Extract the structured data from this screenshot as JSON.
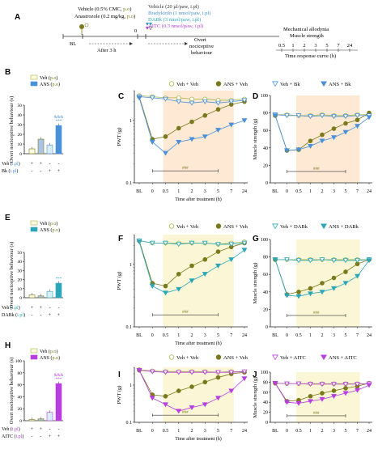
{
  "panel_letters": [
    "A",
    "B",
    "C",
    "D",
    "E",
    "F",
    "G",
    "H",
    "I",
    "J"
  ],
  "timeline": {
    "pretreat_line1": "Vehicle (0.5% CMC, ",
    "pretreat_line1_route": "p.o",
    "pretreat_line2": "Anastrozole (0.2 mg/kg, ",
    "pretreat_line2_route": "p.o",
    "bl": "BL",
    "after": "After 3 h",
    "zero": "0",
    "treat_lines": [
      {
        "text": "Vehicle (20 μl/paw, i.pl)",
        "color": "#333333"
      },
      {
        "text": "Bradykinin (1 nmol/paw, i.pl)",
        "color": "#4a90d9"
      },
      {
        "text": "DABk (3 nmol/paw, i.pl)",
        "color": "#2aa6b8"
      },
      {
        "text": "AITC (0.3 nmol/paw, i.pl)",
        "color": "#b83ee0"
      }
    ],
    "overt_line1": "Overt",
    "overt_line2": "nociceptive",
    "overt_line3": "behaviour",
    "mech_line1": "Mechanical allodynia",
    "mech_line2": "Muscle strength",
    "time_points": [
      "0.5",
      "1",
      "2",
      "3",
      "5",
      "7",
      "24"
    ],
    "time_caption": "Time response curve (h)"
  },
  "legends": [
    {
      "items": [
        "Veh + Veh",
        "ANS + Veh",
        "Veh + Bk",
        "ANS + Bk"
      ]
    },
    {
      "items": [
        "Veh + Veh",
        "ANS + Veh",
        "Veh + DABk",
        "ANS + DABk"
      ]
    },
    {
      "items": [
        "Veh + Veh",
        "ANS + Veh",
        "Veh + AITC",
        "ANS + AITC"
      ]
    }
  ],
  "colors": {
    "veh": "#a8b84a",
    "ans": "#7a7a1c",
    "bk": "#4a90d9",
    "dabk": "#2aa6b8",
    "aitc": "#b83ee0",
    "shade_orange": "#fde9d4",
    "shade_yellow": "#fbf6d6"
  },
  "chart_data": [
    {
      "panel": "B",
      "type": "bar",
      "ylabel": "Overt nociceptive behaviour (s)",
      "ylim": [
        0,
        50
      ],
      "yticks": [
        "0",
        "10",
        "20",
        "30",
        "40",
        "50"
      ],
      "legend": [
        "Veh",
        "ANS"
      ],
      "legend_routes": [
        "p.o",
        "p.o"
      ],
      "row_labels": [
        "Veh",
        "Bk"
      ],
      "row_routes": [
        "i.pl",
        "i.pl"
      ],
      "signs": [
        [
          "+",
          "+",
          "-",
          "-"
        ],
        [
          "-",
          "-",
          "+",
          "+"
        ]
      ],
      "values": [
        5,
        15,
        9,
        29
      ],
      "annotations": [
        "",
        "",
        "",
        "&&&\n***"
      ]
    },
    {
      "panel": "C",
      "type": "line",
      "ylabel": "PWT (g)",
      "xlabel": "Time after treatment (h)",
      "scale": "log",
      "ylim": [
        0.1,
        3
      ],
      "yticks": [
        "0.1",
        "1"
      ],
      "categories": [
        "BL",
        "0",
        "0.5",
        "1",
        "2",
        "3",
        "5",
        "7",
        "24"
      ],
      "series": [
        {
          "name": "Veh + Veh",
          "values": [
            2.5,
            2.4,
            2.3,
            2.3,
            2.2,
            2.2,
            2.1,
            2.1,
            2.2
          ]
        },
        {
          "name": "ANS + Veh",
          "values": [
            2.4,
            0.5,
            0.55,
            0.75,
            0.95,
            1.2,
            1.5,
            1.8,
            2.0
          ]
        },
        {
          "name": "Veh + Bk",
          "values": [
            2.4,
            2.3,
            2.2,
            2.0,
            1.9,
            2.0,
            1.9,
            2.0,
            2.1
          ]
        },
        {
          "name": "ANS + Bk",
          "values": [
            2.3,
            0.45,
            0.3,
            0.45,
            0.5,
            0.55,
            0.7,
            0.85,
            1.0
          ]
        }
      ],
      "bracket": "###"
    },
    {
      "panel": "D",
      "type": "line",
      "ylabel": "Muscle strength (g)",
      "ylim": [
        0,
        100
      ],
      "yticks": [
        "0",
        "20",
        "40",
        "60",
        "80",
        "100"
      ],
      "categories": [
        "BL",
        "0",
        "0.5",
        "1",
        "2",
        "3",
        "5",
        "7",
        "24"
      ],
      "series": [
        {
          "name": "Veh + Veh",
          "values": [
            78,
            78,
            77,
            77,
            78,
            77,
            77,
            78,
            78
          ]
        },
        {
          "name": "ANS + Veh",
          "values": [
            77,
            37,
            38,
            48,
            55,
            62,
            68,
            72,
            80
          ]
        },
        {
          "name": "Veh + Bk",
          "values": [
            78,
            77,
            77,
            76,
            77,
            76,
            76,
            77,
            77
          ]
        },
        {
          "name": "ANS + Bk",
          "values": [
            77,
            37,
            38,
            42,
            48,
            52,
            58,
            65,
            75
          ]
        }
      ],
      "bracket": "###"
    },
    {
      "panel": "E",
      "type": "bar",
      "ylabel": "Overt nociceptive behaviour (s)",
      "ylim": [
        0,
        50
      ],
      "yticks": [
        "0",
        "10",
        "20",
        "30",
        "40",
        "50"
      ],
      "legend": [
        "Veh",
        "ANS"
      ],
      "legend_routes": [
        "p.o",
        "p.o"
      ],
      "row_labels": [
        "Veh",
        "DABk"
      ],
      "row_routes": [
        "i.pl",
        "i.pl"
      ],
      "signs": [
        [
          "+",
          "+",
          "-",
          "-"
        ],
        [
          "-",
          "-",
          "+",
          "+"
        ]
      ],
      "values": [
        3,
        2,
        7,
        16
      ],
      "annotations": [
        "",
        "",
        "",
        "***"
      ]
    },
    {
      "panel": "F",
      "type": "line",
      "ylabel": "PWT (g)",
      "xlabel": "Time after treatment (h)",
      "scale": "log",
      "ylim": [
        0.1,
        3
      ],
      "yticks": [
        "0.1",
        "1"
      ],
      "categories": [
        "BL",
        "0",
        "0.5",
        "1",
        "2",
        "3",
        "5",
        "7",
        "24"
      ],
      "series": [
        {
          "name": "Veh + Veh",
          "values": [
            2.4,
            2.2,
            2.2,
            2.2,
            2.2,
            2.2,
            2.1,
            2.2,
            2.3
          ]
        },
        {
          "name": "ANS + Veh",
          "values": [
            2.4,
            0.5,
            0.45,
            0.7,
            0.95,
            1.2,
            1.6,
            1.9,
            2.2
          ]
        },
        {
          "name": "Veh + DABk",
          "values": [
            2.4,
            2.2,
            2.2,
            2.1,
            2.2,
            2.2,
            2.1,
            2.1,
            2.2
          ]
        },
        {
          "name": "ANS + DABk",
          "values": [
            2.3,
            0.45,
            0.35,
            0.4,
            0.55,
            0.7,
            0.95,
            1.2,
            1.7
          ]
        }
      ],
      "bracket": "###"
    },
    {
      "panel": "G",
      "type": "line",
      "ylabel": "Muscle strength (g)",
      "ylim": [
        0,
        100
      ],
      "yticks": [
        "0",
        "20",
        "40",
        "60",
        "80",
        "100"
      ],
      "categories": [
        "BL",
        "0",
        "0.5",
        "1",
        "2",
        "3",
        "5",
        "7",
        "24"
      ],
      "series": [
        {
          "name": "Veh + Veh",
          "values": [
            77,
            77,
            77,
            77,
            77,
            77,
            77,
            77,
            77
          ]
        },
        {
          "name": "ANS + Veh",
          "values": [
            77,
            37,
            40,
            44,
            50,
            56,
            63,
            72,
            77
          ]
        },
        {
          "name": "Veh + DABk",
          "values": [
            77,
            77,
            76,
            76,
            77,
            76,
            76,
            76,
            77
          ]
        },
        {
          "name": "ANS + DABk",
          "values": [
            77,
            36,
            35,
            38,
            40,
            44,
            50,
            58,
            76
          ]
        }
      ],
      "bracket": "###"
    },
    {
      "panel": "H",
      "type": "bar",
      "ylabel": "Overt nociceptive behaviour (s)",
      "ylim": [
        0,
        100
      ],
      "yticks": [
        "0",
        "20",
        "40",
        "60",
        "80",
        "100"
      ],
      "legend": [
        "Veh",
        "ANS"
      ],
      "legend_routes": [
        "p.o",
        "p.o"
      ],
      "row_labels": [
        "Veh",
        "AITC"
      ],
      "row_routes": [
        "i.pl",
        "i.pl"
      ],
      "signs": [
        [
          "+",
          "+",
          "-",
          "-"
        ],
        [
          "-",
          "-",
          "+",
          "+"
        ]
      ],
      "values": [
        2,
        3,
        14,
        62
      ],
      "annotations": [
        "",
        "",
        "",
        "&&&\n***"
      ]
    },
    {
      "panel": "I",
      "type": "line",
      "ylabel": "PWT (g)",
      "xlabel": "Time after treatment (h)",
      "scale": "log",
      "ylim": [
        0.1,
        3
      ],
      "yticks": [
        "0.1",
        "1"
      ],
      "categories": [
        "BL",
        "0",
        "0.5",
        "1",
        "2",
        "3",
        "5",
        "7",
        "24"
      ],
      "series": [
        {
          "name": "Veh + Veh",
          "values": [
            2.6,
            2.4,
            2.3,
            2.3,
            2.3,
            2.3,
            2.2,
            2.3,
            2.3
          ]
        },
        {
          "name": "ANS + Veh",
          "values": [
            2.5,
            0.55,
            0.5,
            0.7,
            0.9,
            1.2,
            1.6,
            2.0,
            2.2
          ]
        },
        {
          "name": "Veh + AITC",
          "values": [
            2.5,
            2.3,
            2.2,
            2.2,
            2.2,
            2.2,
            2.2,
            2.2,
            2.3
          ]
        },
        {
          "name": "ANS + AITC",
          "values": [
            2.5,
            0.45,
            0.3,
            0.2,
            0.25,
            0.3,
            0.45,
            0.7,
            1.5
          ]
        }
      ],
      "bracket": "###"
    },
    {
      "panel": "J",
      "type": "line",
      "ylabel": "Muscle strength (g)",
      "ylim": [
        0,
        100
      ],
      "yticks": [
        "0",
        "20",
        "40",
        "60",
        "80",
        "100"
      ],
      "categories": [
        "BL",
        "0",
        "0.5",
        "1",
        "2",
        "3",
        "5",
        "7",
        "24"
      ],
      "series": [
        {
          "name": "Veh + Veh",
          "values": [
            78,
            77,
            77,
            77,
            77,
            77,
            77,
            77,
            77
          ]
        },
        {
          "name": "ANS + Veh",
          "values": [
            78,
            42,
            44,
            52,
            58,
            63,
            68,
            72,
            78
          ]
        },
        {
          "name": "Veh + AITC",
          "values": [
            78,
            77,
            77,
            76,
            76,
            76,
            76,
            76,
            77
          ]
        },
        {
          "name": "ANS + AITC",
          "values": [
            78,
            40,
            38,
            42,
            46,
            52,
            58,
            64,
            74
          ]
        }
      ],
      "bracket": "###"
    }
  ]
}
